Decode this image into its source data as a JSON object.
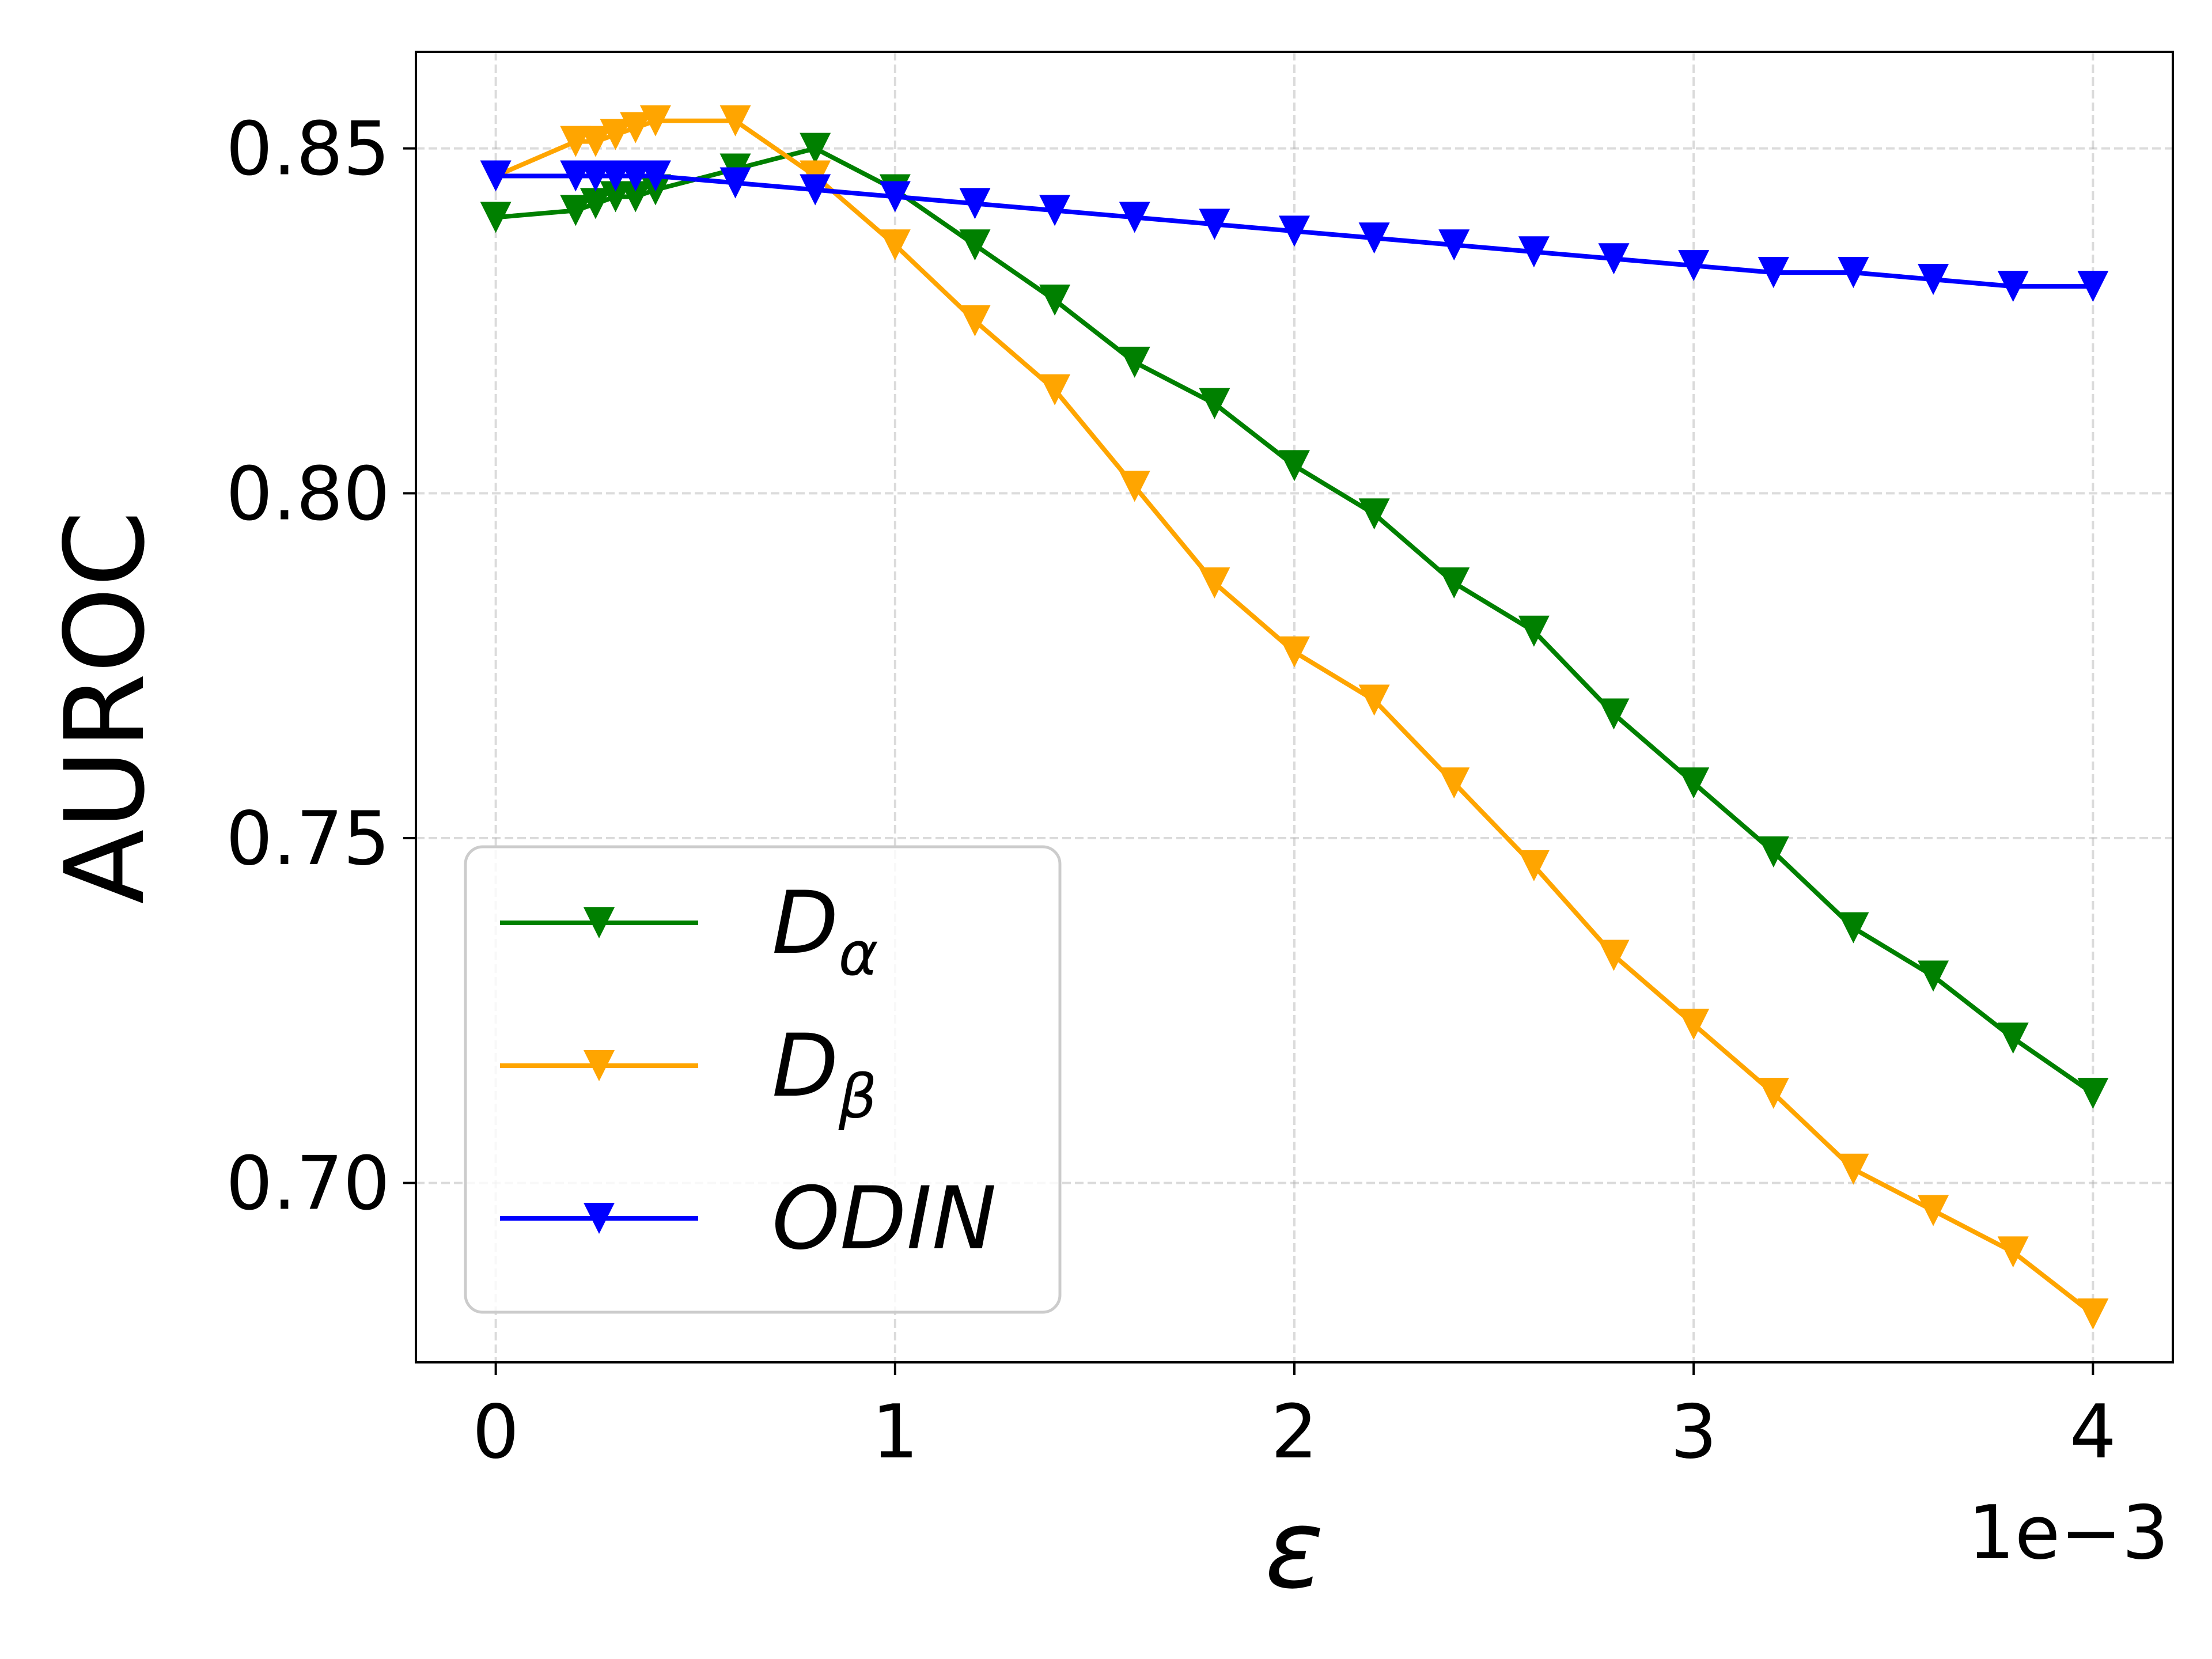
{
  "chart_data": {
    "type": "line",
    "title": "",
    "xlabel": "ε",
    "ylabel": "AUROC",
    "x_offset_label": "1e−3",
    "xlim": [
      -0.2,
      4.2
    ],
    "ylim": [
      0.674,
      0.864
    ],
    "xticks": [
      0,
      1,
      2,
      3,
      4
    ],
    "xtick_labels": [
      "0",
      "1",
      "2",
      "3",
      "4"
    ],
    "yticks": [
      0.7,
      0.75,
      0.8,
      0.85
    ],
    "ytick_labels": [
      "0.70",
      "0.75",
      "0.80",
      "0.85"
    ],
    "grid": true,
    "legend_position": "lower-left",
    "marker": "triangle-down",
    "series": [
      {
        "name": "D",
        "subscript": "α",
        "color": "#008000",
        "x": [
          0,
          0.2,
          0.25,
          0.3,
          0.35,
          0.4,
          0.6,
          0.8,
          1.0,
          1.2,
          1.4,
          1.6,
          1.8,
          2.0,
          2.2,
          2.4,
          2.6,
          2.8,
          3.0,
          3.2,
          3.4,
          3.6,
          3.8,
          4.0
        ],
        "values": [
          0.84,
          0.841,
          0.842,
          0.843,
          0.843,
          0.844,
          0.847,
          0.85,
          0.844,
          0.836,
          0.828,
          0.819,
          0.813,
          0.804,
          0.797,
          0.787,
          0.78,
          0.768,
          0.758,
          0.748,
          0.737,
          0.73,
          0.721,
          0.713
        ]
      },
      {
        "name": "D",
        "subscript": "β",
        "color": "#FFA500",
        "x": [
          0,
          0.2,
          0.25,
          0.3,
          0.35,
          0.4,
          0.6,
          0.8,
          1.0,
          1.2,
          1.4,
          1.6,
          1.8,
          2.0,
          2.2,
          2.4,
          2.6,
          2.8,
          3.0,
          3.2,
          3.4,
          3.6,
          3.8,
          4.0
        ],
        "values": [
          0.846,
          0.851,
          0.851,
          0.852,
          0.853,
          0.854,
          0.854,
          0.846,
          0.836,
          0.825,
          0.815,
          0.801,
          0.787,
          0.777,
          0.77,
          0.758,
          0.746,
          0.733,
          0.723,
          0.713,
          0.702,
          0.696,
          0.69,
          0.681
        ]
      },
      {
        "name": "ODIN",
        "subscript": "",
        "color": "#0000FF",
        "x": [
          0,
          0.2,
          0.25,
          0.3,
          0.35,
          0.4,
          0.6,
          0.8,
          1.0,
          1.2,
          1.4,
          1.6,
          1.8,
          2.0,
          2.2,
          2.4,
          2.6,
          2.8,
          3.0,
          3.2,
          3.4,
          3.6,
          3.8,
          4.0
        ],
        "values": [
          0.846,
          0.846,
          0.846,
          0.846,
          0.846,
          0.846,
          0.845,
          0.844,
          0.843,
          0.842,
          0.841,
          0.84,
          0.839,
          0.838,
          0.837,
          0.836,
          0.835,
          0.834,
          0.833,
          0.832,
          0.832,
          0.831,
          0.83,
          0.83
        ]
      }
    ]
  }
}
